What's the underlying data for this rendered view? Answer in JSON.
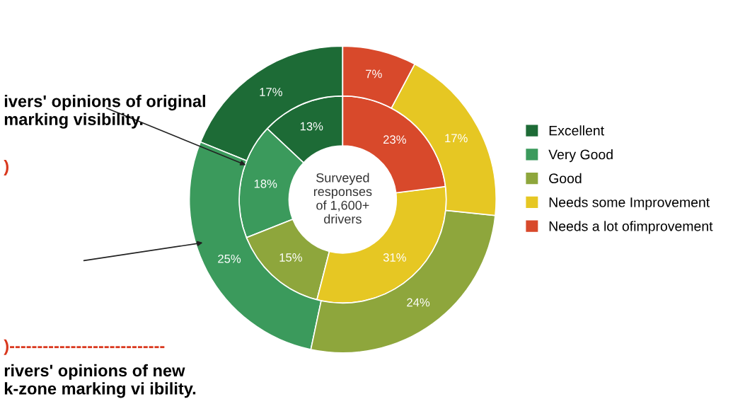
{
  "chart_data": {
    "type": "donut",
    "categories": [
      "Excellent",
      "Very Good",
      "Good",
      "Needs some Improvement",
      "Needs a lot ofimprovement"
    ],
    "colors": [
      "#1d6b36",
      "#3b9a5c",
      "#8ea63c",
      "#e6c723",
      "#d8492b"
    ],
    "series": [
      {
        "values": [
          13,
          18,
          15,
          31,
          23
        ],
        "value_labels": [
          "13%",
          "18%",
          "15%",
          "31%",
          "23%"
        ]
      },
      {
        "values": [
          17,
          25,
          24,
          17,
          7
        ],
        "value_labels": [
          "17%",
          "25%",
          "24%",
          "17%",
          "7%"
        ]
      }
    ],
    "annotations": [
      "ivers' opinions of original\nmarking visibility.",
      ")",
      ")----------------------------",
      "rivers' opinions of new\nk-zone marking vi ibility.",
      "Surveyed\nresponses\nof 1,600+\ndrivers"
    ],
    "legend": "right"
  }
}
